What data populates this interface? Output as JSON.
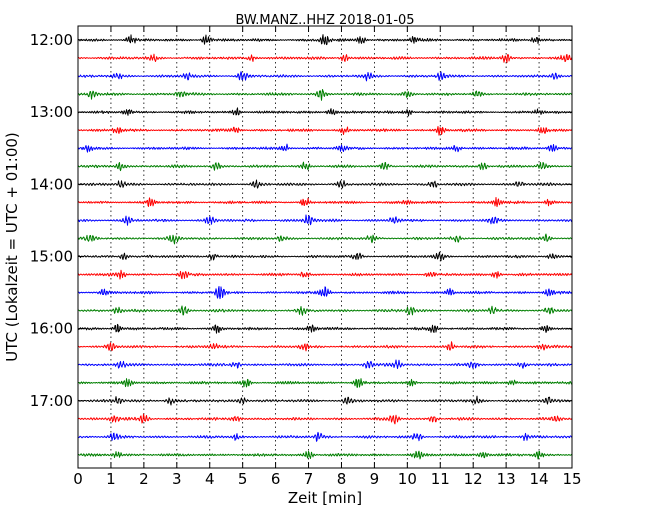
{
  "chart_data": {
    "type": "line",
    "title": "BW.MANZ..HHZ 2018-01-05",
    "xlabel": "Zeit  [min]",
    "ylabel": "UTC (Lokalzeit = UTC + 01:00)",
    "xlim": [
      0,
      15
    ],
    "x_ticks": [
      "0",
      "1",
      "2",
      "3",
      "4",
      "5",
      "6",
      "7",
      "8",
      "9",
      "10",
      "11",
      "12",
      "13",
      "14",
      "15"
    ],
    "y_tick_labels": [
      "12:00",
      "13:00",
      "14:00",
      "15:00",
      "16:00",
      "17:00"
    ],
    "rows_per_hour": 4,
    "row_start_times": [
      "12:00",
      "12:15",
      "12:30",
      "12:45",
      "13:00",
      "13:15",
      "13:30",
      "13:45",
      "14:00",
      "14:15",
      "14:30",
      "14:45",
      "15:00",
      "15:15",
      "15:30",
      "15:45",
      "16:00",
      "16:15",
      "16:30",
      "16:45",
      "17:00",
      "17:15",
      "17:30",
      "17:45"
    ],
    "trace_colors": [
      "#000000",
      "#ff0000",
      "#0000ff",
      "#007f00"
    ],
    "grid": "vertical dotted",
    "bursts": [
      [
        [
          1.6,
          0.9
        ],
        [
          3.9,
          0.8
        ],
        [
          7.5,
          1.0
        ],
        [
          8.6,
          0.7
        ],
        [
          10.2,
          0.6
        ],
        [
          13.9,
          0.7
        ]
      ],
      [
        [
          2.3,
          0.7
        ],
        [
          5.3,
          0.6
        ],
        [
          8.1,
          0.6
        ],
        [
          13.0,
          0.9
        ],
        [
          14.8,
          0.6
        ]
      ],
      [
        [
          1.2,
          0.6
        ],
        [
          3.3,
          0.8
        ],
        [
          5.0,
          0.9
        ],
        [
          8.8,
          0.7
        ],
        [
          11.0,
          0.7
        ],
        [
          14.5,
          0.6
        ]
      ],
      [
        [
          0.4,
          0.7
        ],
        [
          3.1,
          0.7
        ],
        [
          7.4,
          0.9
        ],
        [
          10.0,
          0.6
        ],
        [
          12.1,
          0.6
        ]
      ],
      [
        [
          1.5,
          0.7
        ],
        [
          4.8,
          0.7
        ],
        [
          7.7,
          0.6
        ],
        [
          10.0,
          0.7
        ],
        [
          14.0,
          0.6
        ]
      ],
      [
        [
          1.2,
          0.6
        ],
        [
          4.8,
          0.6
        ],
        [
          8.1,
          0.6
        ],
        [
          11.0,
          0.8
        ],
        [
          14.1,
          0.6
        ]
      ],
      [
        [
          0.3,
          0.6
        ],
        [
          6.3,
          0.7
        ],
        [
          8.0,
          0.6
        ],
        [
          11.5,
          0.7
        ],
        [
          14.4,
          0.6
        ]
      ],
      [
        [
          1.3,
          0.8
        ],
        [
          4.2,
          0.7
        ],
        [
          6.9,
          0.9
        ],
        [
          9.3,
          0.6
        ],
        [
          12.3,
          0.7
        ],
        [
          14.1,
          0.6
        ]
      ],
      [
        [
          1.3,
          0.6
        ],
        [
          5.4,
          0.7
        ],
        [
          8.0,
          0.7
        ],
        [
          10.8,
          0.6
        ],
        [
          13.4,
          0.6
        ]
      ],
      [
        [
          2.2,
          0.7
        ],
        [
          6.9,
          0.8
        ],
        [
          10.0,
          0.6
        ],
        [
          12.7,
          0.8
        ],
        [
          14.3,
          0.6
        ]
      ],
      [
        [
          1.5,
          0.6
        ],
        [
          4.0,
          0.7
        ],
        [
          7.0,
          1.1
        ],
        [
          9.6,
          0.7
        ],
        [
          12.6,
          0.7
        ]
      ],
      [
        [
          0.4,
          0.8
        ],
        [
          2.9,
          0.8
        ],
        [
          6.2,
          0.6
        ],
        [
          8.9,
          0.7
        ],
        [
          11.5,
          0.6
        ],
        [
          14.2,
          0.6
        ]
      ],
      [
        [
          1.4,
          0.6
        ],
        [
          4.1,
          0.7
        ],
        [
          8.5,
          0.7
        ],
        [
          11.0,
          0.6
        ],
        [
          14.4,
          0.5
        ]
      ],
      [
        [
          1.3,
          0.7
        ],
        [
          3.2,
          0.6
        ],
        [
          6.9,
          0.6
        ],
        [
          10.7,
          0.6
        ],
        [
          12.7,
          0.6
        ]
      ],
      [
        [
          0.8,
          0.6
        ],
        [
          4.3,
          1.2
        ],
        [
          7.5,
          1.0
        ],
        [
          11.3,
          0.6
        ],
        [
          14.3,
          0.6
        ]
      ],
      [
        [
          1.2,
          0.6
        ],
        [
          3.2,
          0.9
        ],
        [
          6.8,
          0.6
        ],
        [
          10.1,
          0.8
        ],
        [
          12.6,
          0.6
        ],
        [
          14.3,
          0.6
        ]
      ],
      [
        [
          1.2,
          0.8
        ],
        [
          4.2,
          0.7
        ],
        [
          7.1,
          0.7
        ],
        [
          10.8,
          0.7
        ],
        [
          14.2,
          0.6
        ]
      ],
      [
        [
          1.0,
          0.6
        ],
        [
          4.1,
          0.6
        ],
        [
          6.9,
          0.7
        ],
        [
          11.3,
          0.8
        ],
        [
          14.1,
          0.6
        ]
      ],
      [
        [
          1.3,
          0.6
        ],
        [
          4.8,
          0.6
        ],
        [
          8.8,
          0.7
        ],
        [
          9.7,
          0.7
        ],
        [
          12.0,
          0.7
        ],
        [
          13.5,
          0.6
        ]
      ],
      [
        [
          1.5,
          0.6
        ],
        [
          5.1,
          0.7
        ],
        [
          8.5,
          0.9
        ],
        [
          10.1,
          0.6
        ],
        [
          13.2,
          0.6
        ]
      ],
      [
        [
          1.2,
          0.6
        ],
        [
          2.8,
          0.7
        ],
        [
          5.0,
          0.6
        ],
        [
          8.2,
          0.6
        ],
        [
          12.1,
          0.6
        ],
        [
          14.3,
          0.6
        ]
      ],
      [
        [
          1.1,
          0.6
        ],
        [
          2.0,
          0.7
        ],
        [
          4.8,
          0.6
        ],
        [
          9.6,
          0.9
        ],
        [
          10.8,
          0.6
        ],
        [
          14.5,
          0.7
        ]
      ],
      [
        [
          1.1,
          0.8
        ],
        [
          4.8,
          0.6
        ],
        [
          7.3,
          0.7
        ],
        [
          10.3,
          0.7
        ],
        [
          13.6,
          0.6
        ]
      ],
      [
        [
          1.2,
          0.6
        ],
        [
          7.0,
          0.8
        ],
        [
          10.3,
          0.8
        ],
        [
          12.3,
          0.8
        ],
        [
          14.0,
          0.6
        ]
      ]
    ]
  }
}
